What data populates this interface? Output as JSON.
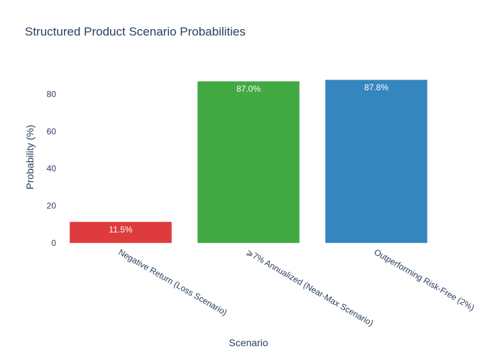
{
  "chart_data": {
    "type": "bar",
    "title": "Structured Product Scenario Probabilities",
    "xlabel": "Scenario",
    "ylabel": "Probability (%)",
    "categories": [
      "Negative Return (Loss Scenario)",
      "⩾7% Annualized (Near-Max Scenario)",
      "Outperforming Risk-Free (2%)"
    ],
    "values": [
      11.5,
      87.0,
      87.8
    ],
    "data_labels": [
      "11.5%",
      "87.0%",
      "87.8%"
    ],
    "colors": [
      "#de3b3e",
      "#41a942",
      "#3585bf"
    ],
    "ylim": [
      0,
      92.4
    ],
    "yticks": [
      0,
      20,
      40,
      60,
      80
    ],
    "ytick_labels": [
      "0",
      "20",
      "40",
      "60",
      "80"
    ],
    "grid": false,
    "legend": "none"
  },
  "colors": {
    "text": "#2a3f5f",
    "label_on_bar": "#ffffff",
    "background": "#ffffff"
  }
}
